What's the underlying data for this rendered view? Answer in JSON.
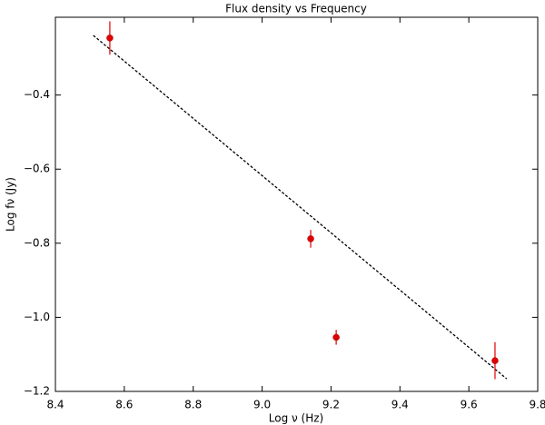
{
  "chart_data": {
    "type": "scatter",
    "title": "Flux density vs Frequency",
    "x_label": "Log ν (Hz)",
    "y_label": "Log fν (Jy)",
    "x": [
      8.558,
      9.141,
      9.215,
      9.676
    ],
    "values": [
      -0.246,
      -0.788,
      -1.054,
      -1.117
    ],
    "yerr": [
      0.045,
      0.024,
      0.02,
      0.05
    ],
    "color": "#e00000",
    "fit": {
      "x": [
        8.51,
        9.71
      ],
      "values": [
        -0.239,
        -1.166
      ],
      "color": "#000000"
    },
    "xlim": [
      8.4,
      9.8
    ],
    "ylim": [
      -1.2,
      -0.19
    ],
    "xticks": [
      8.4,
      8.6,
      8.8,
      {
        "value": 9,
        "label": "9.0"
      },
      9.2,
      9.4,
      9.6,
      9.8
    ],
    "yticks": [
      {
        "value": -1.2,
        "label": "−1.2"
      },
      {
        "value": -1.0,
        "label": "−1.0"
      },
      {
        "value": -0.8,
        "label": "−0.8"
      },
      {
        "value": -0.6,
        "label": "−0.6"
      },
      {
        "value": -0.4,
        "label": "−0.4"
      }
    ],
    "grid": false
  }
}
